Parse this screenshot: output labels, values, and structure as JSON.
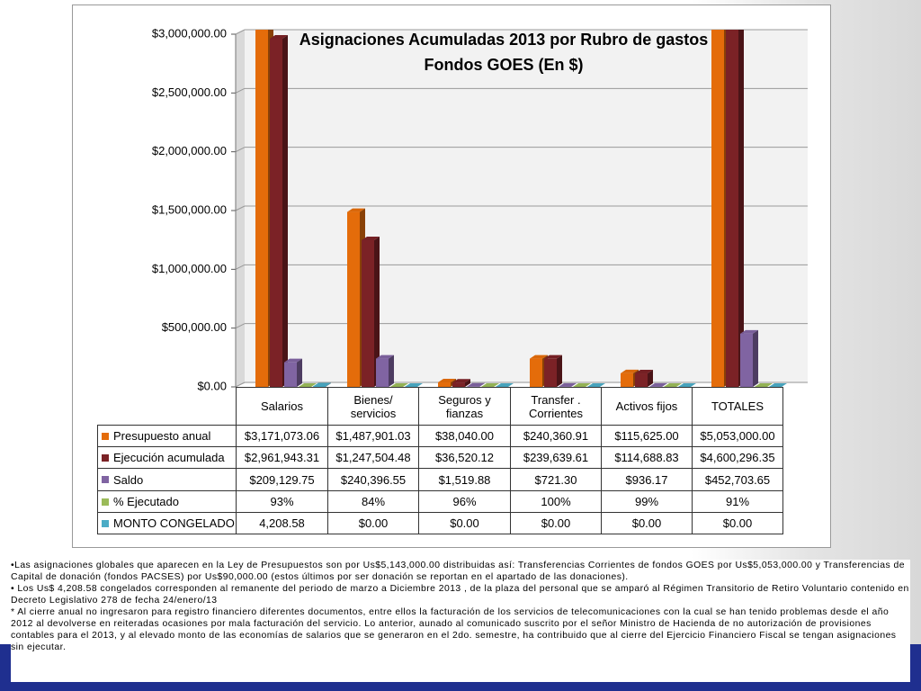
{
  "chart_data": {
    "type": "bar3d",
    "title": "Asignaciones Acumuladas 2013 por Rubro de gastos",
    "subtitle": "Fondos GOES  (En $)",
    "categories": [
      "Salarios",
      "Bienes/ servicios",
      "Seguros y fianzas",
      "Transfer . Corrientes",
      "Activos fijos",
      "TOTALES"
    ],
    "ylim": [
      0,
      3000000
    ],
    "yticks": [
      {
        "value": 0,
        "label": "$0.00"
      },
      {
        "value": 500000,
        "label": "$500,000.00"
      },
      {
        "value": 1000000,
        "label": "$1,000,000.00"
      },
      {
        "value": 1500000,
        "label": "$1,500,000.00"
      },
      {
        "value": 2000000,
        "label": "$2,000,000.00"
      },
      {
        "value": 2500000,
        "label": "$2,500,000.00"
      },
      {
        "value": 3000000,
        "label": "$3,000,000.00"
      }
    ],
    "grid": true,
    "series": [
      {
        "name": "Presupuesto anual",
        "color": "#e46c0a",
        "values": [
          3171073.06,
          1487901.03,
          38040.0,
          240360.91,
          115625.0,
          5053000.0
        ],
        "value_labels": [
          "$3,171,073.06",
          "$1,487,901.03",
          "$38,040.00",
          "$240,360.91",
          "$115,625.00",
          "$5,053,000.00"
        ]
      },
      {
        "name": "Ejecución acumulada",
        "color": "#7b2226",
        "values": [
          2961943.31,
          1247504.48,
          36520.12,
          239639.61,
          114688.83,
          4600296.35
        ],
        "value_labels": [
          "$2,961,943.31",
          "$1,247,504.48",
          "$36,520.12",
          "$239,639.61",
          "$114,688.83",
          "$4,600,296.35"
        ]
      },
      {
        "name": "Saldo",
        "color": "#8064a2",
        "values": [
          209129.75,
          240396.55,
          1519.88,
          721.3,
          936.17,
          452703.65
        ],
        "value_labels": [
          "$209,129.75",
          "$240,396.55",
          "$1,519.88",
          "$721.30",
          "$936.17",
          "$452,703.65"
        ]
      },
      {
        "name": "% Ejecutado",
        "color": "#9bbb59",
        "values": [
          93,
          84,
          96,
          100,
          99,
          91
        ],
        "value_labels": [
          "93%",
          "84%",
          "96%",
          "100%",
          "99%",
          "91%"
        ]
      },
      {
        "name": "MONTO CONGELADO",
        "color": "#4bacc6",
        "values": [
          4208.58,
          0,
          0,
          0,
          0,
          0
        ],
        "value_labels": [
          "4,208.58",
          "$0.00",
          "$0.00",
          "$0.00",
          "$0.00",
          "$0.00"
        ]
      }
    ]
  },
  "notes": [
    "•Las asignaciones globales que aparecen en la Ley de Presupuestos son por Us$5,143,000.00 distribuidas así: Transferencias Corrientes de fondos GOES por Us$5,053,000.00 y Transferencias de Capital de donación (fondos PACSES) por Us$90,000.00 (estos últimos por ser donación se reportan en el apartado de las donaciones).",
    "• Los Us$ 4,208.58 congelados corresponden al remanente del periodo de marzo a Diciembre 2013 , de la plaza del personal que se amparó al Régimen Transitorio de Retiro Voluntario contenido en Decreto Legislativo 278 de fecha 24/enero/13",
    "* Al cierre anual no ingresaron para registro financiero diferentes documentos, entre ellos la facturación de los servicios de telecomunicaciones con la cual se han tenido problemas desde el año 2012 al devolverse en reiteradas ocasiones por mala facturación del servicio.  Lo anterior, aunado al comunicado suscrito por el señor Ministro de Hacienda de no autorización de provisiones contables para el 2013, y al elevado monto de las economías de salarios que se generaron en el 2do. semestre, ha contribuido que al cierre del Ejercicio Financiero Fiscal se tengan asignaciones sin ejecutar."
  ]
}
